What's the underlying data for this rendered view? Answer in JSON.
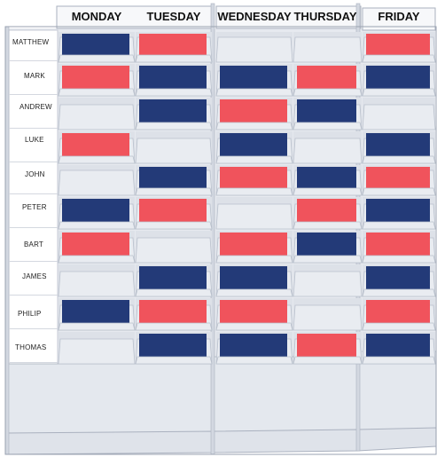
{
  "days": [
    "MONDAY",
    "TUESDAY",
    "WEDNESDAY",
    "THURSDAY",
    "FRIDAY"
  ],
  "names": [
    "MATTHEW",
    "MARK",
    "ANDREW",
    "LUKE",
    "JOHN",
    "PETER",
    "BART",
    "JAMES",
    "PHILIP",
    "THOMAS"
  ],
  "card_colors": {
    "red": "#f0535c",
    "blue": "#233a78"
  },
  "board_color": "#e6e9ef",
  "cards": [
    [
      "blue",
      "red",
      "",
      "",
      "red"
    ],
    [
      "red",
      "blue",
      "blue",
      "red",
      "blue"
    ],
    [
      "",
      "blue",
      "red",
      "blue",
      ""
    ],
    [
      "red",
      "",
      "blue",
      "",
      "blue"
    ],
    [
      "",
      "blue",
      "red",
      "blue",
      "red"
    ],
    [
      "blue",
      "red",
      "",
      "red",
      "blue"
    ],
    [
      "red",
      "",
      "red",
      "blue",
      "red"
    ],
    [
      "",
      "blue",
      "blue",
      "",
      "blue"
    ],
    [
      "blue",
      "red",
      "red",
      "",
      "red"
    ],
    [
      "",
      "blue",
      "blue",
      "red",
      "blue"
    ]
  ]
}
